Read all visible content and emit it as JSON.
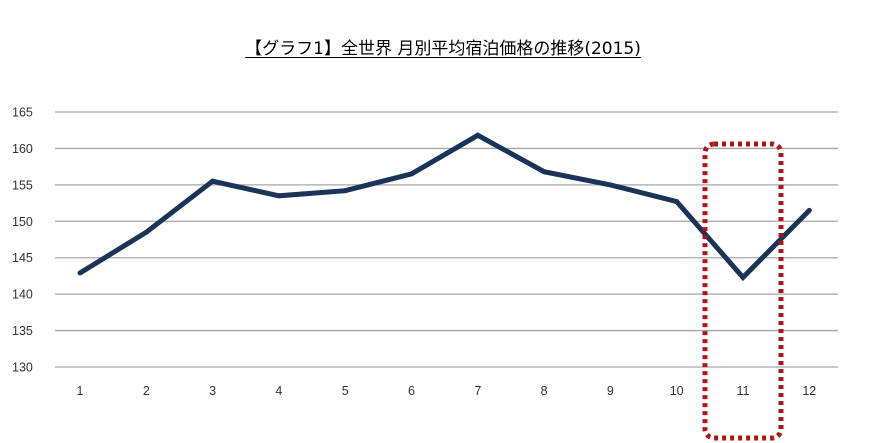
{
  "chart_data": {
    "type": "line",
    "title": "【グラフ1】全世界  月別平均宿泊価格の推移(2015)",
    "xlabel": "",
    "ylabel": "",
    "categories": [
      1,
      2,
      3,
      4,
      5,
      6,
      7,
      8,
      9,
      10,
      11,
      12
    ],
    "values": [
      142.9,
      148.5,
      155.5,
      153.5,
      154.2,
      156.5,
      161.8,
      156.8,
      155.0,
      152.7,
      142.3,
      151.5
    ],
    "ylim": [
      130,
      165
    ],
    "yticks": [
      130,
      135,
      140,
      145,
      150,
      155,
      160,
      165
    ],
    "grid": true,
    "legend": "none",
    "line_color": "#1a3358",
    "highlight": {
      "category": 11,
      "style": "dotted-rounded-box",
      "color": "#b01515"
    }
  }
}
